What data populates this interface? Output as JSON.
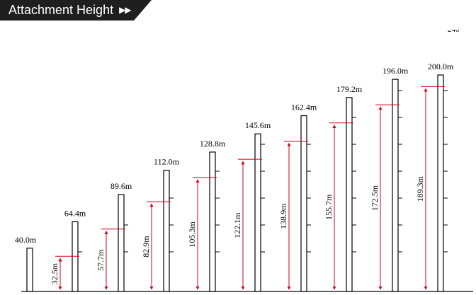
{
  "header": {
    "title": "Attachment Height",
    "arrows": "▶▶"
  },
  "corner_text": "240",
  "colors": {
    "header_bg": "#1f1f1f",
    "header_text": "#ffffff",
    "mast_stroke": "#000000",
    "dimension": "#d0021b"
  },
  "masts": [
    {
      "total_height": "40.0m",
      "attachment_height": ""
    },
    {
      "total_height": "64.4m",
      "attachment_height": "32.5m"
    },
    {
      "total_height": "89.6m",
      "attachment_height": "57.7m"
    },
    {
      "total_height": "112.0m",
      "attachment_height": "82.9m"
    },
    {
      "total_height": "128.8m",
      "attachment_height": "105.3m"
    },
    {
      "total_height": "145.6m",
      "attachment_height": "122.1m"
    },
    {
      "total_height": "162.4m",
      "attachment_height": "138.9m"
    },
    {
      "total_height": "179.2m",
      "attachment_height": "155.7m"
    },
    {
      "total_height": "196.0m",
      "attachment_height": "172.5m"
    },
    {
      "total_height": "200.0m",
      "attachment_height": "189.3m"
    }
  ]
}
